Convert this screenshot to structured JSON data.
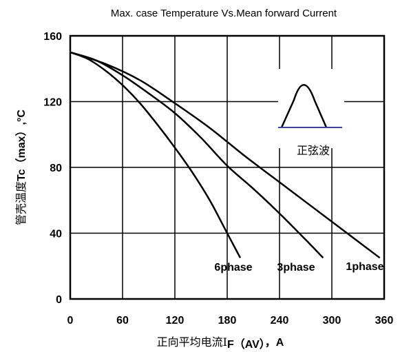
{
  "chart_data": {
    "type": "line",
    "title": "Max. case Temperature Vs.Mean forward Current",
    "xlabel": {
      "main": "正向平均电流I",
      "sub": "F（AV）",
      "tail": "，A"
    },
    "ylabel": {
      "cjk": "管壳温度",
      "latin": "Tc（max）,°C"
    },
    "xlim": [
      0,
      360
    ],
    "ylim": [
      0,
      160
    ],
    "xticks": [
      "0",
      "60",
      "120",
      "180",
      "240",
      "300",
      "360"
    ],
    "yticks": [
      "0",
      "40",
      "80",
      "120",
      "160"
    ],
    "grid": true,
    "series": [
      {
        "name": "6phase",
        "x": [
          0,
          20,
          40,
          60,
          80,
          100,
          120,
          140,
          160,
          180,
          195
        ],
        "y": [
          150,
          146,
          139,
          130,
          119,
          106,
          92,
          77,
          60,
          40,
          25
        ]
      },
      {
        "name": "3phase",
        "x": [
          0,
          30,
          60,
          90,
          120,
          150,
          180,
          210,
          240,
          270,
          290
        ],
        "y": [
          150,
          145,
          136,
          125,
          113,
          98,
          81,
          67,
          52,
          36,
          25
        ]
      },
      {
        "name": "1phase",
        "x": [
          0,
          40,
          80,
          120,
          160,
          200,
          240,
          280,
          320,
          355
        ],
        "y": [
          150,
          143,
          133,
          119,
          104,
          87,
          71,
          55,
          39,
          25
        ]
      }
    ],
    "inset": {
      "label": "正弦波",
      "shape": "sine-wave-pulse"
    }
  }
}
